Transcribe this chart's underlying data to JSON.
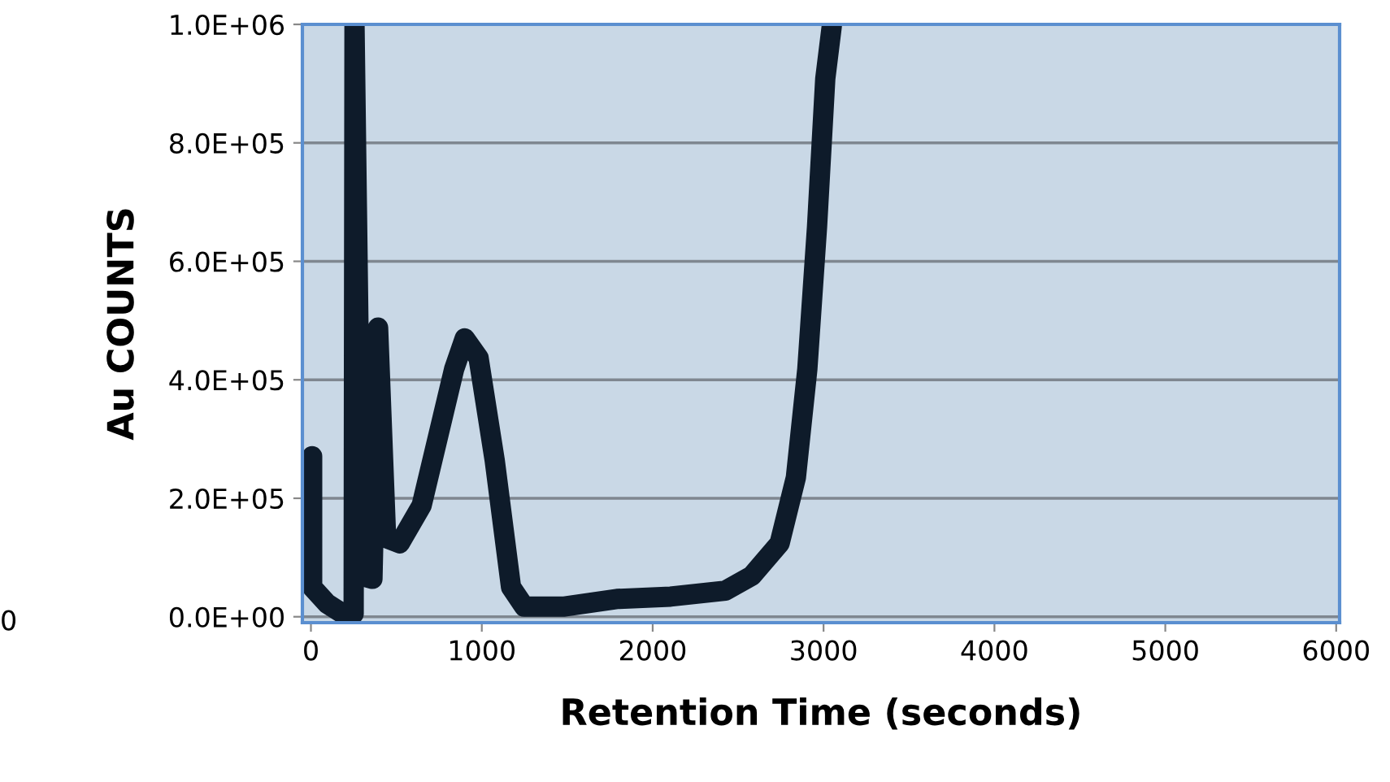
{
  "chart_data": {
    "type": "line",
    "xlabel": "Retention Time (seconds)",
    "ylabel": "Au COUNTS",
    "annotations": [
      "0"
    ],
    "series": [
      {
        "color": "#0e1b2a",
        "x": [
          7,
          7,
          95,
          188,
          250,
          255,
          297,
          360,
          393,
          440,
          520,
          648,
          838,
          900,
          981,
          1076,
          1171,
          1248,
          1476,
          1790,
          2105,
          2425,
          2580,
          2743,
          2838,
          2905,
          2962,
          3010,
          3048
        ],
        "values": [
          271000,
          50000,
          22000,
          5000,
          5000,
          1000000,
          69000,
          64000,
          488000,
          133000,
          124000,
          188000,
          418000,
          470000,
          437000,
          263000,
          50000,
          17000,
          17000,
          30000,
          34000,
          44000,
          69000,
          124000,
          235000,
          418000,
          659000,
          908000,
          997000
        ]
      }
    ],
    "xlim": [
      -50,
      6020
    ],
    "ylim": [
      -10000,
      1000000
    ],
    "xticks": [
      0,
      1000,
      2000,
      3000,
      4000,
      5000,
      6000
    ],
    "yticks": [
      {
        "value": 0,
        "label": "0.0E+00"
      },
      {
        "value": 200000,
        "label": "2.0E+05"
      },
      {
        "value": 400000,
        "label": "4.0E+05"
      },
      {
        "value": 600000,
        "label": "6.0E+05"
      },
      {
        "value": 800000,
        "label": "8.0E+05"
      },
      {
        "value": 1000000,
        "label": "1.0E+06"
      }
    ],
    "grid": "y",
    "legend": false,
    "line_style": "solid"
  }
}
